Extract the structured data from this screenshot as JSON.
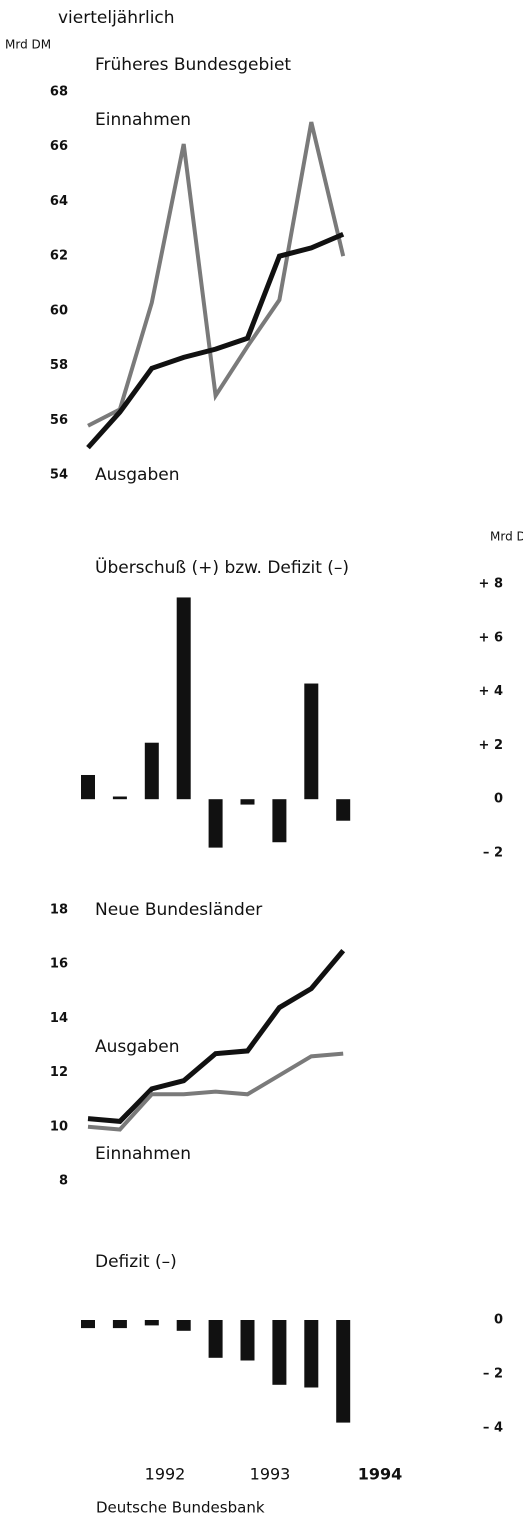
{
  "header": "vierteljährlich",
  "footer": "Deutsche Bundesbank",
  "x_labels": [
    "1992",
    "1993",
    "1994"
  ],
  "chart_data": [
    {
      "type": "line",
      "title": "Früheres Bundesgebiet",
      "y_label": "Mrd DM",
      "ylim": [
        54,
        68
      ],
      "yticks": [
        54,
        56,
        58,
        60,
        62,
        64,
        66,
        68
      ],
      "series": [
        {
          "name": "Einnahmen",
          "color": "#7a7a7a",
          "values": [
            55.8,
            56.4,
            60.3,
            66.1,
            56.9,
            58.7,
            60.4,
            66.9,
            62.0
          ]
        },
        {
          "name": "Ausgaben",
          "color": "#111111",
          "values": [
            55.0,
            56.3,
            57.9,
            58.3,
            58.6,
            59.0,
            62.0,
            62.3,
            62.8
          ]
        }
      ]
    },
    {
      "type": "bar",
      "title": "Überschuß (+) bzw. Defizit (–)",
      "y_label": "Mrd DM",
      "color": "#111111",
      "ylim": [
        -2,
        8
      ],
      "yticks": [
        {
          "value": 8,
          "label": "+ 8"
        },
        {
          "value": 6,
          "label": "+ 6"
        },
        {
          "value": 4,
          "label": "+ 4"
        },
        {
          "value": 2,
          "label": "+ 2"
        },
        0,
        {
          "value": -2,
          "label": "– 2"
        }
      ],
      "values": [
        0.9,
        0.1,
        2.1,
        7.5,
        -1.8,
        -0.2,
        -1.6,
        4.3,
        -0.8
      ]
    },
    {
      "type": "line",
      "title": "Neue Bundesländer",
      "ylim": [
        8,
        18
      ],
      "yticks": [
        8,
        10,
        12,
        14,
        16,
        18
      ],
      "series": [
        {
          "name": "Ausgaben",
          "color": "#111111",
          "values": [
            10.3,
            10.2,
            11.4,
            11.7,
            12.7,
            12.8,
            14.4,
            15.1,
            16.5
          ]
        },
        {
          "name": "Einnahmen",
          "color": "#7a7a7a",
          "values": [
            10.0,
            9.9,
            11.2,
            11.2,
            11.3,
            11.2,
            11.9,
            12.6,
            12.7
          ]
        }
      ]
    },
    {
      "type": "bar",
      "title": "Defizit (–)",
      "color": "#111111",
      "ylim": [
        -4,
        0
      ],
      "yticks": [
        0,
        {
          "value": -2,
          "label": "– 2"
        },
        {
          "value": -4,
          "label": "– 4"
        }
      ],
      "values": [
        -0.3,
        -0.3,
        -0.2,
        -0.4,
        -1.4,
        -1.5,
        -2.4,
        -2.5,
        -3.8
      ]
    }
  ]
}
